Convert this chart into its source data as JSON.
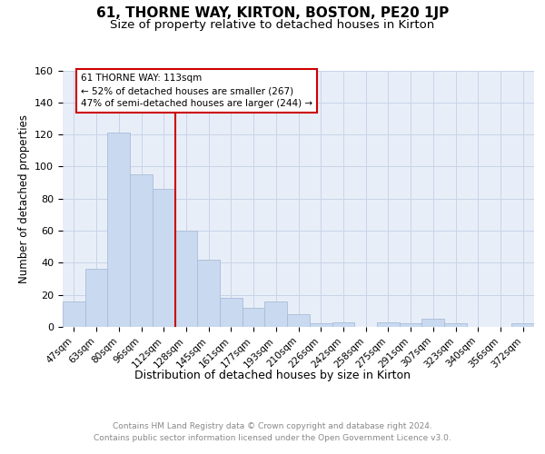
{
  "title": "61, THORNE WAY, KIRTON, BOSTON, PE20 1JP",
  "subtitle": "Size of property relative to detached houses in Kirton",
  "xlabel": "Distribution of detached houses by size in Kirton",
  "ylabel": "Number of detached properties",
  "categories": [
    "47sqm",
    "63sqm",
    "80sqm",
    "96sqm",
    "112sqm",
    "128sqm",
    "145sqm",
    "161sqm",
    "177sqm",
    "193sqm",
    "210sqm",
    "226sqm",
    "242sqm",
    "258sqm",
    "275sqm",
    "291sqm",
    "307sqm",
    "323sqm",
    "340sqm",
    "356sqm",
    "372sqm"
  ],
  "values": [
    16,
    36,
    121,
    95,
    86,
    60,
    42,
    18,
    12,
    16,
    8,
    2,
    3,
    0,
    3,
    2,
    5,
    2,
    0,
    0,
    2
  ],
  "bar_color": "#c8d9f0",
  "bar_edge_color": "#aabdd8",
  "vline_color": "#cc0000",
  "annotation_text": "61 THORNE WAY: 113sqm\n← 52% of detached houses are smaller (267)\n47% of semi-detached houses are larger (244) →",
  "annotation_box_color": "#ffffff",
  "annotation_box_edge_color": "#cc0000",
  "ylim": [
    0,
    160
  ],
  "yticks": [
    0,
    20,
    40,
    60,
    80,
    100,
    120,
    140,
    160
  ],
  "grid_color": "#c8d4e8",
  "background_color": "#e8eef8",
  "footer_text": "Contains HM Land Registry data © Crown copyright and database right 2024.\nContains public sector information licensed under the Open Government Licence v3.0.",
  "title_fontsize": 11,
  "subtitle_fontsize": 9.5,
  "xlabel_fontsize": 9,
  "ylabel_fontsize": 8.5,
  "tick_fontsize": 7.5,
  "ytick_fontsize": 8,
  "footer_fontsize": 6.5
}
